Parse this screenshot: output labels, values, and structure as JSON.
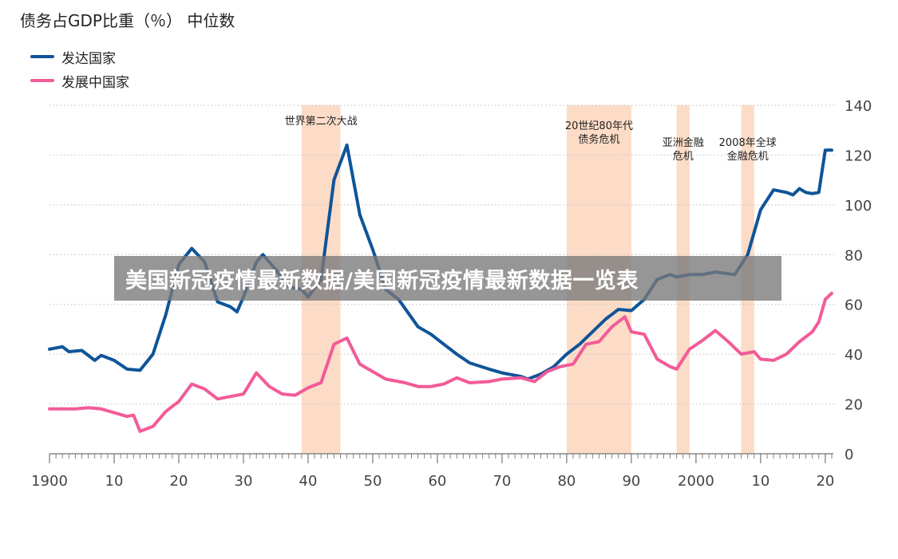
{
  "chart_data": {
    "type": "line",
    "title": "债务占GDP比重（％） 中位数",
    "xlim": [
      1900,
      2021
    ],
    "ylim": [
      0,
      140
    ],
    "y_ticks": [
      0,
      20,
      40,
      60,
      80,
      100,
      120,
      140
    ],
    "y_tick_labels": [
      "0",
      "20",
      "40",
      "60",
      "80",
      "100",
      "120",
      "140"
    ],
    "x_ticks": [
      1900,
      1910,
      1920,
      1930,
      1940,
      1950,
      1960,
      1970,
      1980,
      1990,
      2000,
      2010,
      2020
    ],
    "x_tick_labels": [
      "1900",
      "10",
      "20",
      "30",
      "40",
      "50",
      "60",
      "70",
      "80",
      "90",
      "2000",
      "10",
      "20"
    ],
    "legend_position": "top-left",
    "grid": "horizontal dotted",
    "series": [
      {
        "name": "发达国家",
        "color": "#0f5499",
        "points": [
          [
            1900,
            42
          ],
          [
            1902,
            43
          ],
          [
            1903,
            41
          ],
          [
            1905,
            41.5
          ],
          [
            1907,
            37.5
          ],
          [
            1908,
            39.5
          ],
          [
            1910,
            37.5
          ],
          [
            1912,
            34
          ],
          [
            1914,
            33.5
          ],
          [
            1916,
            40
          ],
          [
            1918,
            56
          ],
          [
            1920,
            76
          ],
          [
            1922,
            82.5
          ],
          [
            1924,
            77
          ],
          [
            1926,
            61
          ],
          [
            1928,
            59
          ],
          [
            1929,
            57
          ],
          [
            1930,
            63
          ],
          [
            1932,
            77
          ],
          [
            1933,
            80
          ],
          [
            1935,
            74
          ],
          [
            1937,
            67
          ],
          [
            1939,
            66
          ],
          [
            1940,
            63
          ],
          [
            1942,
            70
          ],
          [
            1944,
            110
          ],
          [
            1946,
            124
          ],
          [
            1948,
            96
          ],
          [
            1950,
            82
          ],
          [
            1952,
            66
          ],
          [
            1954,
            62
          ],
          [
            1957,
            51
          ],
          [
            1959,
            48
          ],
          [
            1961,
            44
          ],
          [
            1963,
            40
          ],
          [
            1965,
            36.5
          ],
          [
            1968,
            34
          ],
          [
            1970,
            32.5
          ],
          [
            1973,
            31
          ],
          [
            1974,
            30
          ],
          [
            1976,
            32
          ],
          [
            1978,
            35
          ],
          [
            1980,
            40
          ],
          [
            1982,
            44
          ],
          [
            1984,
            49
          ],
          [
            1986,
            54
          ],
          [
            1988,
            58
          ],
          [
            1990,
            57.5
          ],
          [
            1992,
            62
          ],
          [
            1994,
            70
          ],
          [
            1996,
            72
          ],
          [
            1997,
            71
          ],
          [
            1999,
            72
          ],
          [
            2001,
            72
          ],
          [
            2003,
            73
          ],
          [
            2006,
            72
          ],
          [
            2008,
            80
          ],
          [
            2010,
            98
          ],
          [
            2012,
            106
          ],
          [
            2014,
            105
          ],
          [
            2015,
            104
          ],
          [
            2016,
            106.5
          ],
          [
            2017,
            105
          ],
          [
            2018,
            104.5
          ],
          [
            2019,
            105
          ],
          [
            2020,
            122
          ],
          [
            2021,
            122
          ]
        ]
      },
      {
        "name": "发展中国家",
        "color": "#f25b98",
        "points": [
          [
            1900,
            18
          ],
          [
            1902,
            18
          ],
          [
            1904,
            18
          ],
          [
            1906,
            18.5
          ],
          [
            1908,
            18
          ],
          [
            1910,
            16.5
          ],
          [
            1912,
            15
          ],
          [
            1913,
            15.5
          ],
          [
            1914,
            9
          ],
          [
            1916,
            11
          ],
          [
            1918,
            17
          ],
          [
            1920,
            21
          ],
          [
            1922,
            28
          ],
          [
            1924,
            26
          ],
          [
            1926,
            22
          ],
          [
            1928,
            23
          ],
          [
            1930,
            24
          ],
          [
            1932,
            32.5
          ],
          [
            1934,
            27
          ],
          [
            1936,
            24
          ],
          [
            1938,
            23.5
          ],
          [
            1940,
            26.5
          ],
          [
            1942,
            28.5
          ],
          [
            1944,
            44
          ],
          [
            1946,
            46.5
          ],
          [
            1948,
            36
          ],
          [
            1950,
            33
          ],
          [
            1952,
            30
          ],
          [
            1955,
            28.5
          ],
          [
            1957,
            27
          ],
          [
            1959,
            27
          ],
          [
            1961,
            28
          ],
          [
            1963,
            30.5
          ],
          [
            1965,
            28.5
          ],
          [
            1968,
            29
          ],
          [
            1970,
            30
          ],
          [
            1973,
            30.5
          ],
          [
            1975,
            29
          ],
          [
            1977,
            33
          ],
          [
            1979,
            35
          ],
          [
            1981,
            36
          ],
          [
            1983,
            44
          ],
          [
            1985,
            45
          ],
          [
            1987,
            51
          ],
          [
            1989,
            55
          ],
          [
            1990,
            49
          ],
          [
            1992,
            48
          ],
          [
            1994,
            38
          ],
          [
            1996,
            35
          ],
          [
            1997,
            34
          ],
          [
            1999,
            42
          ],
          [
            2001,
            45.5
          ],
          [
            2003,
            49.5
          ],
          [
            2005,
            45
          ],
          [
            2007,
            40
          ],
          [
            2008,
            40.5
          ],
          [
            2009,
            41
          ],
          [
            2010,
            38
          ],
          [
            2012,
            37.5
          ],
          [
            2014,
            40
          ],
          [
            2016,
            45
          ],
          [
            2018,
            49
          ],
          [
            2019,
            53
          ],
          [
            2020,
            62
          ],
          [
            2021,
            64.5
          ]
        ]
      }
    ],
    "shaded_periods": [
      {
        "start": 1939,
        "end": 1945,
        "label_lines": [
          "世界第二次大战"
        ]
      },
      {
        "start": 1980,
        "end": 1990,
        "label_lines": [
          "20世纪80年代",
          "债务危机"
        ]
      },
      {
        "start": 1997,
        "end": 1999,
        "label_lines": [
          "亚洲金融",
          "危机"
        ]
      },
      {
        "start": 2007,
        "end": 2009,
        "label_lines": [
          "2008年全球",
          "金融危机"
        ]
      }
    ]
  },
  "legend": {
    "items": [
      {
        "label": "发达国家",
        "color": "#0f5499"
      },
      {
        "label": "发展中国家",
        "color": "#f25b98"
      }
    ]
  },
  "overlay": {
    "watermark_text": "美国新冠疫情最新数据/美国新冠疫情最新数据一览表"
  }
}
